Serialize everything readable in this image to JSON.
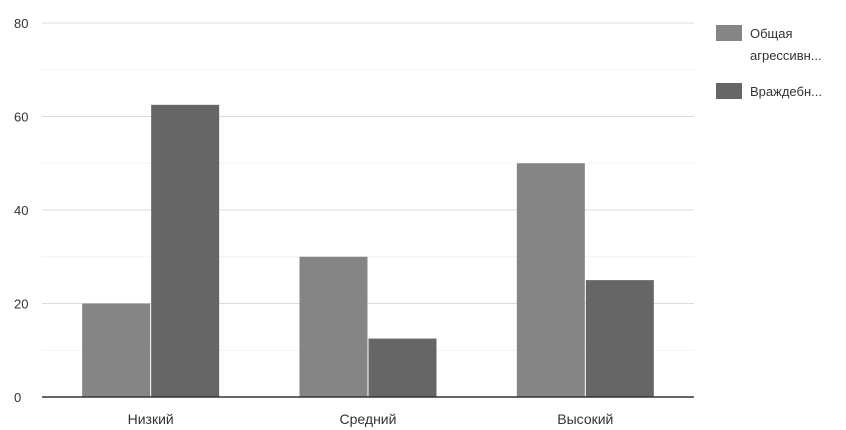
{
  "chart_data": {
    "type": "bar",
    "categories": [
      "Низкий",
      "Средний",
      "Высокий"
    ],
    "series": [
      {
        "name": "Общая агрессивн...",
        "values": [
          20,
          30,
          50
        ],
        "color": "#858585"
      },
      {
        "name": "Враждебн...",
        "values": [
          62.5,
          12.5,
          25
        ],
        "color": "#666666"
      }
    ],
    "ylim": [
      0,
      80
    ],
    "yticks": [
      0,
      20,
      40,
      60,
      80
    ],
    "title": "",
    "xlabel": "",
    "ylabel": "",
    "grid": true,
    "legend_position": "right"
  },
  "legend": {
    "items": [
      {
        "line1": "Общая",
        "line2": "агрессивн..."
      },
      {
        "line1": "Враждебн...",
        "line2": ""
      }
    ]
  }
}
